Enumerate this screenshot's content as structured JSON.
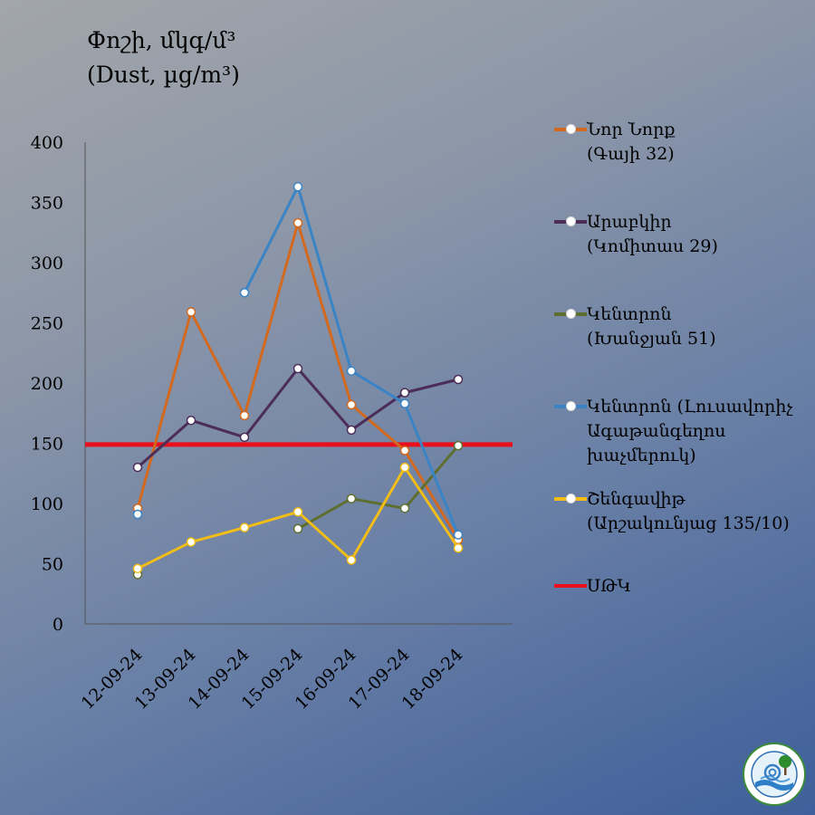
{
  "title": {
    "line1": "Փոշի, մկգ/մ³",
    "line2": "(Dust, µg/m³)"
  },
  "chart_data": {
    "type": "line",
    "categories": [
      "12-09-24",
      "13-09-24",
      "14-09-24",
      "15-09-24",
      "16-09-24",
      "17-09-24",
      "18-09-24"
    ],
    "ylim": [
      0,
      400
    ],
    "yticks": [
      0,
      50,
      100,
      150,
      200,
      250,
      300,
      350,
      400
    ],
    "series": [
      {
        "name_lines": [
          "Նոր Նորք",
          "(Գայի 32)"
        ],
        "color": "#d2691e",
        "values": [
          96,
          259,
          173,
          333,
          182,
          144,
          70
        ]
      },
      {
        "name_lines": [
          "Արաբկիր",
          "(Կոմիտաս 29)"
        ],
        "color": "#4b2d57",
        "values": [
          130,
          169,
          155,
          212,
          161,
          192,
          203
        ]
      },
      {
        "name_lines": [
          "Կենտրոն",
          "(Խանջյան 51)"
        ],
        "color": "#5e6e2e",
        "values": [
          41,
          null,
          null,
          79,
          104,
          96,
          148
        ]
      },
      {
        "name_lines": [
          "Կենտրոն (Լուսավորիչ",
          "Ագաթանգեղոս",
          "խաչմերուկ)"
        ],
        "color": "#3a84c6",
        "values": [
          91,
          null,
          275,
          363,
          210,
          183,
          74
        ]
      },
      {
        "name_lines": [
          "Շենգավիթ",
          "(Արշակունյաց 135/10)"
        ],
        "color": "#f2bd16",
        "values": [
          46,
          68,
          80,
          93,
          53,
          130,
          63
        ]
      }
    ],
    "threshold": {
      "name": "ՍԹԿ",
      "value": 149,
      "color": "#e8101c"
    },
    "legend_position": "right",
    "grid": false
  },
  "logo": {
    "icon": "ministry-emblem-icon"
  }
}
